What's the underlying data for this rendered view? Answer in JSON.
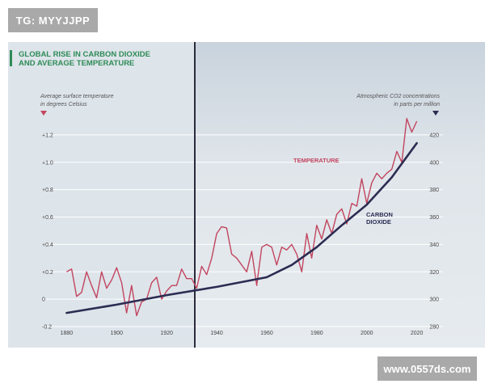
{
  "watermarks": {
    "top_left": "TG: MYYJJPP",
    "bottom_right": "www.0557ds.com"
  },
  "title": {
    "line1": "GLOBAL RISE IN CARBON DIOXIDE",
    "line2": "AND AVERAGE TEMPERATURE"
  },
  "colors": {
    "temperature": "#c2455f",
    "co2": "#2c2c52",
    "title": "#2f8b57",
    "grid": "#ffffff",
    "marker": "#2b2b3b"
  },
  "chart_data": {
    "type": "line",
    "title": "GLOBAL RISE IN CARBON DIOXIDE AND AVERAGE TEMPERATURE",
    "left_axis_label": [
      "Average surface temperature",
      "in degrees Celsius"
    ],
    "right_axis_label": [
      "Atmospheric CO2 concentrations",
      "in parts per million"
    ],
    "x_ticks": [
      "1880",
      "1900",
      "1920",
      "1940",
      "1960",
      "1980",
      "2000",
      "2020"
    ],
    "x_tick_values": [
      1880,
      1900,
      1920,
      1940,
      1960,
      1980,
      2000,
      2020
    ],
    "xlim": [
      1876,
      2024
    ],
    "left_ticks": [
      "+1.2",
      "+1.0",
      "+0.8",
      "+0.6",
      "+0.4",
      "+0.2",
      "0",
      "-0.2"
    ],
    "left_tick_values": [
      1.2,
      1.0,
      0.8,
      0.6,
      0.4,
      0.2,
      0,
      -0.2
    ],
    "ylim_left": [
      -0.2,
      1.3
    ],
    "right_ticks": [
      "420",
      "400",
      "380",
      "360",
      "340",
      "320",
      "300",
      "280"
    ],
    "right_tick_values": [
      420,
      400,
      380,
      360,
      340,
      320,
      300,
      280
    ],
    "ylim_right": [
      280,
      420
    ],
    "annotations": {
      "temperature": "TEMPERATURE",
      "co2_line1": "CARBON",
      "co2_line2": "DIOXIDE"
    },
    "series": [
      {
        "name": "Temperature",
        "axis": "left",
        "x": [
          1880,
          1882,
          1884,
          1886,
          1888,
          1890,
          1892,
          1894,
          1896,
          1898,
          1900,
          1902,
          1904,
          1906,
          1908,
          1910,
          1912,
          1914,
          1916,
          1918,
          1920,
          1922,
          1924,
          1926,
          1928,
          1930,
          1932,
          1934,
          1936,
          1938,
          1940,
          1942,
          1944,
          1946,
          1948,
          1950,
          1952,
          1954,
          1956,
          1958,
          1960,
          1962,
          1964,
          1966,
          1968,
          1970,
          1972,
          1974,
          1976,
          1978,
          1980,
          1982,
          1984,
          1986,
          1988,
          1990,
          1992,
          1994,
          1996,
          1998,
          2000,
          2002,
          2004,
          2006,
          2008,
          2010,
          2012,
          2014,
          2016,
          2018,
          2020
        ],
        "values": [
          0.2,
          0.22,
          0.02,
          0.05,
          0.2,
          0.1,
          0.01,
          0.2,
          0.08,
          0.14,
          0.23,
          0.12,
          -0.1,
          0.1,
          -0.12,
          -0.02,
          0.0,
          0.12,
          0.16,
          0.0,
          0.06,
          0.1,
          0.1,
          0.22,
          0.15,
          0.15,
          0.08,
          0.24,
          0.18,
          0.3,
          0.48,
          0.53,
          0.52,
          0.33,
          0.3,
          0.25,
          0.2,
          0.35,
          0.1,
          0.38,
          0.4,
          0.38,
          0.25,
          0.38,
          0.36,
          0.4,
          0.33,
          0.2,
          0.48,
          0.3,
          0.54,
          0.44,
          0.58,
          0.48,
          0.62,
          0.66,
          0.55,
          0.7,
          0.68,
          0.88,
          0.7,
          0.85,
          0.92,
          0.88,
          0.92,
          0.95,
          1.08,
          1.0,
          1.32,
          1.22,
          1.3
        ]
      },
      {
        "name": "Carbon Dioxide",
        "axis": "right",
        "x": [
          1880,
          1900,
          1920,
          1940,
          1960,
          1970,
          1980,
          1990,
          2000,
          2010,
          2020
        ],
        "values": [
          290,
          296,
          303,
          309,
          316,
          325,
          338,
          354,
          369,
          389,
          414
        ]
      }
    ]
  }
}
